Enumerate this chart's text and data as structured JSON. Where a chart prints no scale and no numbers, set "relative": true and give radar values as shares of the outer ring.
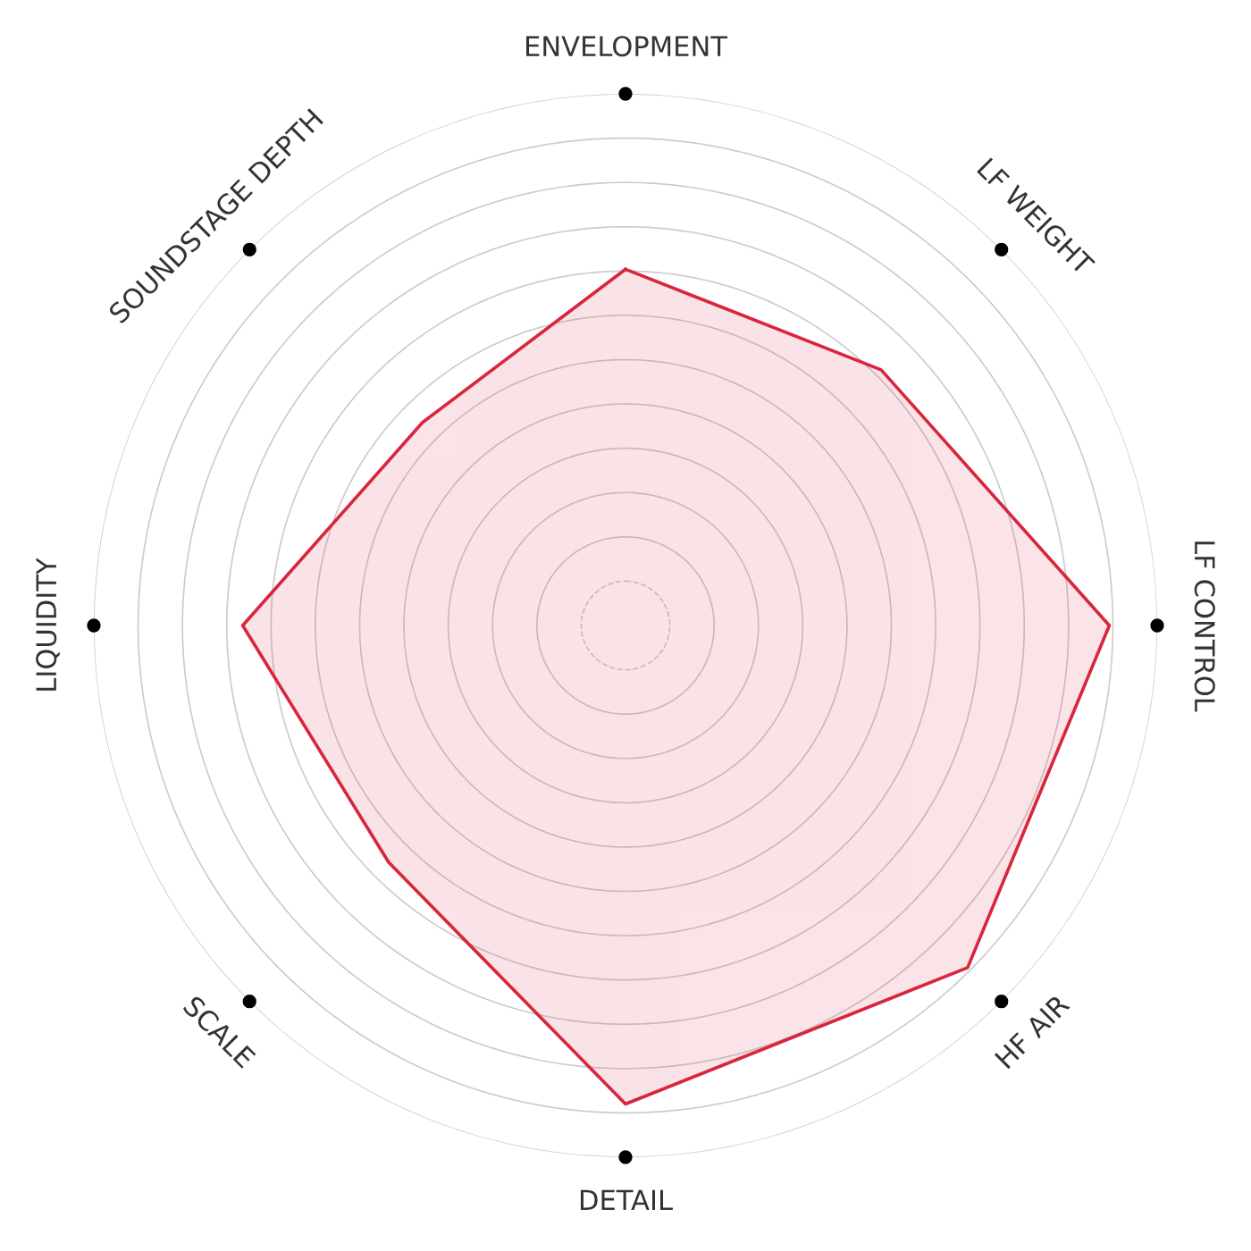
{
  "chart_data": {
    "type": "radar",
    "relative": true,
    "grid": true,
    "legend": false,
    "marker": "none",
    "categories": [
      "ENVELOPMENT",
      "LF WEIGHT",
      "LF CONTROL",
      "HF AIR",
      "DETAIL",
      "SCALE",
      "LIQUIDITY",
      "SOUNDSTAGE DEPTH"
    ],
    "series": [
      {
        "color": "#d7263d",
        "values": [
          0.67,
          0.68,
          0.91,
          0.91,
          0.9,
          0.63,
          0.72,
          0.54
        ]
      }
    ]
  }
}
